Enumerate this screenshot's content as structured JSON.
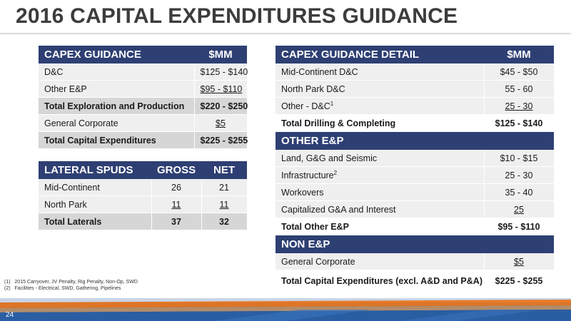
{
  "title": "2016 CAPITAL EXPENDITURES GUIDANCE",
  "capex": {
    "header": [
      "CAPEX GUIDANCE",
      "$MM"
    ],
    "rows": [
      {
        "label": "D&C",
        "value": "$125 - $140"
      },
      {
        "label": "Other E&P",
        "value": "$95 - $110"
      },
      {
        "label": "Total Exploration and Production",
        "value": "$220 - $250"
      },
      {
        "label": "General Corporate",
        "value": "$5"
      },
      {
        "label": "Total Capital Expenditures",
        "value": "$225 - $255"
      }
    ]
  },
  "spuds": {
    "header": [
      "LATERAL SPUDS",
      "GROSS",
      "NET"
    ],
    "rows": [
      {
        "label": "Mid-Continent",
        "gross": "26",
        "net": "21"
      },
      {
        "label": "North Park",
        "gross": "11",
        "net": "11"
      },
      {
        "label": "Total Laterals",
        "gross": "37",
        "net": "32"
      }
    ]
  },
  "detail": {
    "header": [
      "CAPEX GUIDANCE DETAIL",
      "$MM"
    ],
    "dc_rows": [
      {
        "label": "Mid-Continent D&C",
        "value": "$45 - $50"
      },
      {
        "label": "North Park D&C",
        "value": "55 - 60"
      },
      {
        "label": "Other - D&C",
        "sup": "1",
        "value": "25 - 30"
      }
    ],
    "dc_total": {
      "label": "Total Drilling & Completing",
      "value": "$125 - $140"
    },
    "other_header": "OTHER E&P",
    "other_rows": [
      {
        "label": "Land, G&G and Seismic",
        "value": "$10 - $15"
      },
      {
        "label": "Infrastructure",
        "sup": "2",
        "value": "25 - 30"
      },
      {
        "label": "Workovers",
        "value": "35 - 40"
      },
      {
        "label": "Capitalized G&A and Interest",
        "value": "25"
      }
    ],
    "other_total": {
      "label": "Total Other E&P",
      "value": "$95 - $110"
    },
    "non_header": "NON E&P",
    "non_rows": [
      {
        "label": "General Corporate",
        "value": "$5"
      }
    ],
    "grand_total": {
      "label": "Total Capital Expenditures (excl. A&D and P&A)",
      "value": "$225 - $255"
    }
  },
  "footnotes": [
    {
      "num": "(1)",
      "text": "2015 Carryover, JV Penalty, Rig Penalty, Non-Op, SWD"
    },
    {
      "num": "(2)",
      "text": "Facilities - Electrical, SWD, Gathering, Pipelines"
    }
  ],
  "page_number": "24",
  "colors": {
    "header_bg": "#2e3f73",
    "accent_orange": "#e87722",
    "band_blue": "#1f4e8c"
  }
}
